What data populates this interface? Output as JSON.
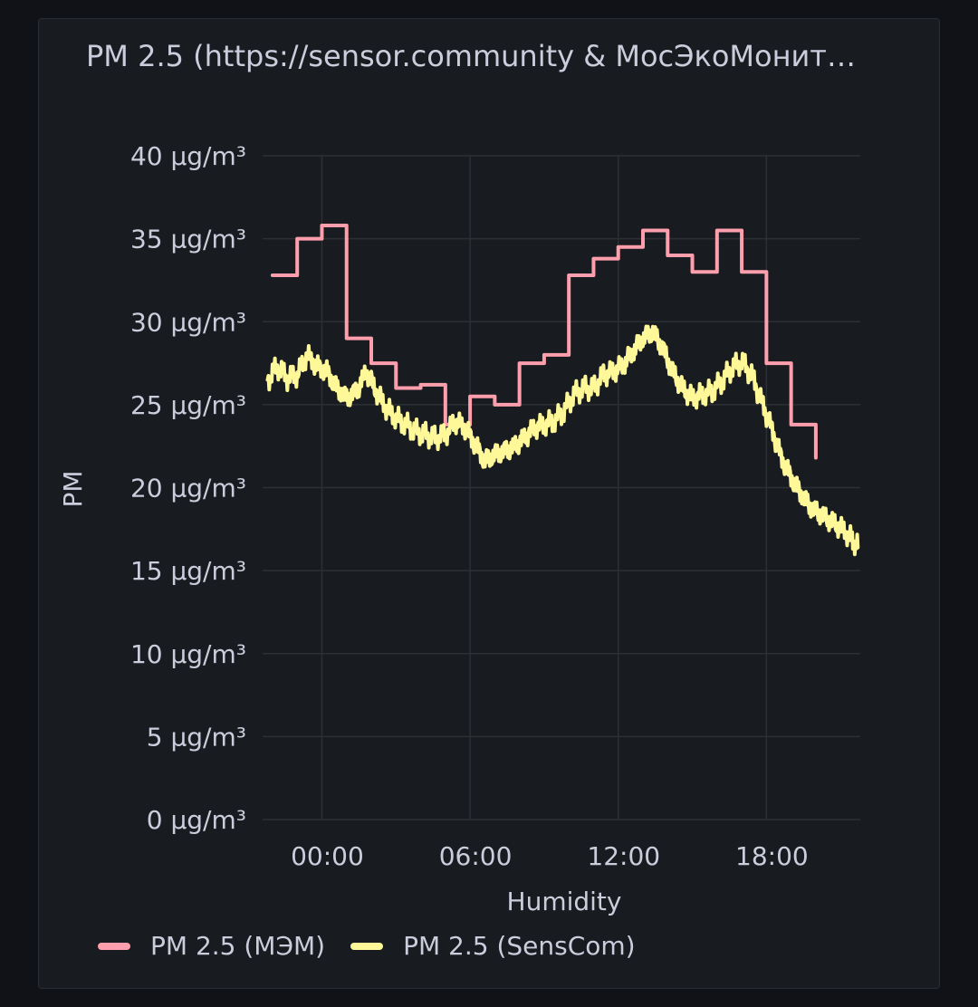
{
  "panel": {
    "title": "PM 2.5 (https://sensor.community & МосЭкоМонит…"
  },
  "chart_data": {
    "type": "line",
    "title": "PM 2.5 (https://sensor.community & МосЭкоМонит…",
    "xlabel": "Humidity",
    "ylabel": "PM",
    "x_unit": "hours relative to 00:00",
    "xlim": [
      -2.4,
      21.8
    ],
    "ylim": [
      0,
      40
    ],
    "x_ticks": [
      {
        "v": 0,
        "label": "00:00"
      },
      {
        "v": 6,
        "label": "06:00"
      },
      {
        "v": 12,
        "label": "12:00"
      },
      {
        "v": 18,
        "label": "18:00"
      }
    ],
    "y_ticks": [
      {
        "v": 0,
        "label": "0 µg/m³"
      },
      {
        "v": 5,
        "label": "5 µg/m³"
      },
      {
        "v": 10,
        "label": "10 µg/m³"
      },
      {
        "v": 15,
        "label": "15 µg/m³"
      },
      {
        "v": 20,
        "label": "20 µg/m³"
      },
      {
        "v": 25,
        "label": "25 µg/m³"
      },
      {
        "v": 30,
        "label": "30 µg/m³"
      },
      {
        "v": 35,
        "label": "35 µg/m³"
      },
      {
        "v": 40,
        "label": "40 µg/m³"
      }
    ],
    "grid": true,
    "legend_position": "bottom-left",
    "series": [
      {
        "name": "PM 2.5 (МЭМ)",
        "color": "#ff9fad",
        "step": true,
        "points": [
          [
            -2.0,
            32.8
          ],
          [
            -1.0,
            35.0
          ],
          [
            0.0,
            35.8
          ],
          [
            1.0,
            29.0
          ],
          [
            2.0,
            27.5
          ],
          [
            3.0,
            26.0
          ],
          [
            4.0,
            26.2
          ],
          [
            5.0,
            23.8
          ],
          [
            6.0,
            25.5
          ],
          [
            7.0,
            25.0
          ],
          [
            8.0,
            27.5
          ],
          [
            9.0,
            28.0
          ],
          [
            10.0,
            32.8
          ],
          [
            11.0,
            33.8
          ],
          [
            12.0,
            34.5
          ],
          [
            13.0,
            35.5
          ],
          [
            14.0,
            34.0
          ],
          [
            15.0,
            33.0
          ],
          [
            16.0,
            35.5
          ],
          [
            17.0,
            33.0
          ],
          [
            18.0,
            27.5
          ],
          [
            19.0,
            23.8
          ],
          [
            20.0,
            21.8
          ]
        ]
      },
      {
        "name": "PM 2.5 (SensCom)",
        "color": "#fff899",
        "step": false,
        "points": [
          [
            -2.2,
            26.5
          ],
          [
            -1.8,
            27.3
          ],
          [
            -1.4,
            26.6
          ],
          [
            -1.0,
            26.8
          ],
          [
            -0.6,
            28.0
          ],
          [
            -0.2,
            27.3
          ],
          [
            0.2,
            27.0
          ],
          [
            0.6,
            26.0
          ],
          [
            1.0,
            25.4
          ],
          [
            1.4,
            25.8
          ],
          [
            1.8,
            27.0
          ],
          [
            2.2,
            25.8
          ],
          [
            2.6,
            24.8
          ],
          [
            3.0,
            24.2
          ],
          [
            3.4,
            23.8
          ],
          [
            3.8,
            23.4
          ],
          [
            4.2,
            23.2
          ],
          [
            4.6,
            23.0
          ],
          [
            5.0,
            23.2
          ],
          [
            5.4,
            24.0
          ],
          [
            5.8,
            23.6
          ],
          [
            6.2,
            22.6
          ],
          [
            6.6,
            21.6
          ],
          [
            7.0,
            22.0
          ],
          [
            7.4,
            22.2
          ],
          [
            7.8,
            22.5
          ],
          [
            8.2,
            23.0
          ],
          [
            8.6,
            23.6
          ],
          [
            9.0,
            23.8
          ],
          [
            9.4,
            24.0
          ],
          [
            9.8,
            24.6
          ],
          [
            10.2,
            25.6
          ],
          [
            10.6,
            26.0
          ],
          [
            11.0,
            26.0
          ],
          [
            11.4,
            26.8
          ],
          [
            11.8,
            27.0
          ],
          [
            12.2,
            27.4
          ],
          [
            12.6,
            28.2
          ],
          [
            13.0,
            29.0
          ],
          [
            13.4,
            29.4
          ],
          [
            13.8,
            28.4
          ],
          [
            14.2,
            27.0
          ],
          [
            14.6,
            26.0
          ],
          [
            15.0,
            25.4
          ],
          [
            15.4,
            25.6
          ],
          [
            15.8,
            25.8
          ],
          [
            16.2,
            26.4
          ],
          [
            16.6,
            27.2
          ],
          [
            17.0,
            27.6
          ],
          [
            17.4,
            26.8
          ],
          [
            17.8,
            25.2
          ],
          [
            18.2,
            23.6
          ],
          [
            18.6,
            21.8
          ],
          [
            19.0,
            20.6
          ],
          [
            19.4,
            19.6
          ],
          [
            19.8,
            18.8
          ],
          [
            20.2,
            18.4
          ],
          [
            20.6,
            18.0
          ],
          [
            21.0,
            17.6
          ],
          [
            21.4,
            17.0
          ],
          [
            21.7,
            16.4
          ]
        ]
      }
    ]
  },
  "legend": {
    "items": [
      {
        "label": "PM 2.5 (МЭМ)",
        "color": "#ff9fad"
      },
      {
        "label": "PM 2.5 (SensCom)",
        "color": "#fff899"
      }
    ]
  }
}
